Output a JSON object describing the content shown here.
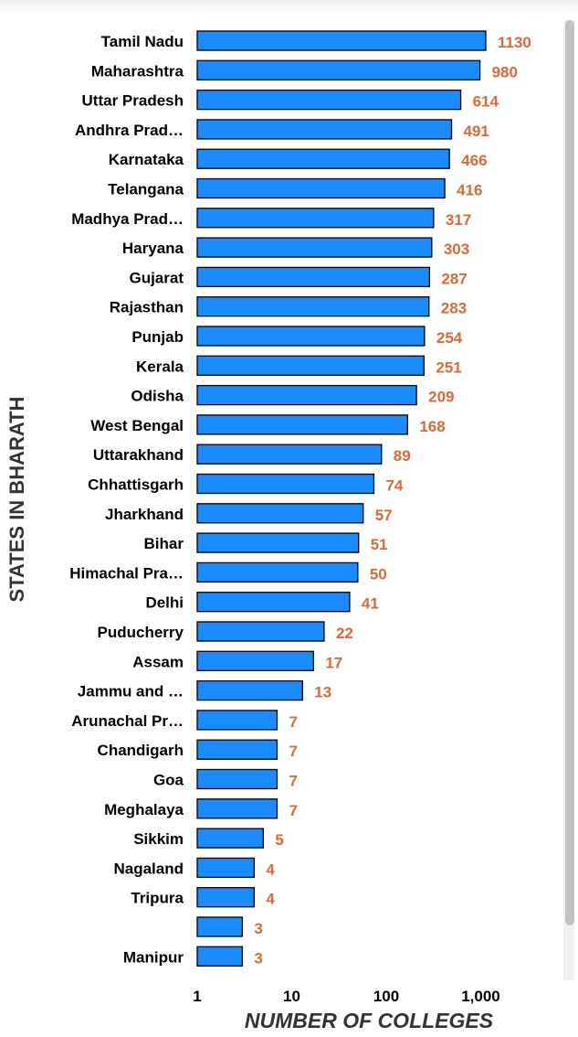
{
  "chart_data": {
    "type": "bar",
    "orientation": "horizontal",
    "x_scale": "log",
    "xlim": [
      1,
      1130
    ],
    "xlabel": "NUMBER OF COLLEGES",
    "ylabel": "STATES IN BHARATH",
    "xticks": [
      "1",
      "10",
      "100",
      "1,000"
    ],
    "tick_values": [
      1,
      10,
      100,
      1000
    ],
    "categories": [
      "Tamil Nadu",
      "Maharashtra",
      "Uttar Pradesh",
      "Andhra Prad…",
      "Karnataka",
      "Telangana",
      "Madhya Prad…",
      "Haryana",
      "Gujarat",
      "Rajasthan",
      "Punjab",
      "Kerala",
      "Odisha",
      "West Bengal",
      "Uttarakhand",
      "Chhattisgarh",
      "Jharkhand",
      "Bihar",
      "Himachal Pra…",
      "Delhi",
      "Puducherry",
      "Assam",
      "Jammu and …",
      "Arunachal Pr…",
      "Chandigarh",
      "Goa",
      "Meghalaya",
      "Sikkim",
      "Nagaland",
      "Tripura",
      "",
      "Manipur"
    ],
    "values": [
      1130,
      980,
      614,
      491,
      466,
      416,
      317,
      303,
      287,
      283,
      254,
      251,
      209,
      168,
      89,
      74,
      57,
      51,
      50,
      41,
      22,
      17,
      13,
      7,
      7,
      7,
      7,
      5,
      4,
      4,
      3,
      3
    ],
    "data_labels": [
      "1130",
      "980",
      "614",
      "491",
      "466",
      "416",
      "317",
      "303",
      "287",
      "283",
      "254",
      "251",
      "209",
      "168",
      "89",
      "74",
      "57",
      "51",
      "50",
      "41",
      "22",
      "17",
      "13",
      "7",
      "7",
      "7",
      "7",
      "5",
      "4",
      "4",
      "3",
      "3"
    ],
    "bar_color": "#1a8cff",
    "bar_stroke": "#000000",
    "label_color": "#e0673a",
    "grid": false,
    "legend": "none"
  }
}
